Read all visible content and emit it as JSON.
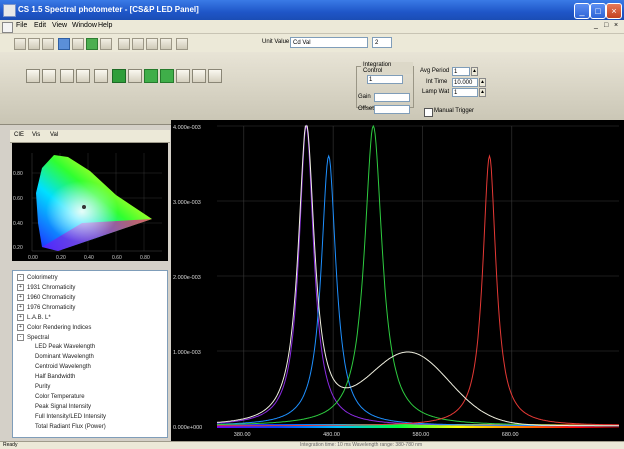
{
  "window": {
    "title": "CS 1.5 Spectral photometer - [CS&P LED Panel]",
    "buttons": [
      "_",
      "□",
      "×"
    ]
  },
  "menubar": {
    "items": [
      "File",
      "Edit",
      "View",
      "Window",
      "Help"
    ],
    "mdi_controls": [
      "_",
      "□",
      "×"
    ]
  },
  "toolbar": {
    "unit_label": "Unit Value",
    "unit_value": "Cd Val",
    "zoom_value": "2"
  },
  "measurement_panel": {
    "group_label": "Integration Control",
    "combo_value": "1",
    "field1_label": "Gain",
    "field2_label": "Offset",
    "avg_label": "Avg Period",
    "avg_value": "1",
    "int_time_label": "Int Time",
    "int_time_value": "10.000",
    "lamp_label": "Lamp Wat",
    "lamp_value": "1",
    "checkbox_label": "Manual Trigger"
  },
  "left_panel": {
    "tabs": [
      "CIE",
      "Vis",
      "Val"
    ],
    "tree": [
      {
        "label": "Colorimetry",
        "level": 0
      },
      {
        "label": "1931 Chromaticity",
        "level": 1
      },
      {
        "label": "1960 Chromaticity",
        "level": 1
      },
      {
        "label": "1976 Chromaticity",
        "level": 1
      },
      {
        "label": "L.A.B. L*",
        "level": 1
      },
      {
        "label": "Color Rendering Indices",
        "level": 1
      },
      {
        "label": "Spectral",
        "level": 1
      },
      {
        "label": "LED Peak Wavelength",
        "level": 2
      },
      {
        "label": "Dominant Wavelength",
        "level": 2
      },
      {
        "label": "Centroid Wavelength",
        "level": 2
      },
      {
        "label": "Half Bandwidth",
        "level": 2
      },
      {
        "label": "Purity",
        "level": 2
      },
      {
        "label": "Color Temperature",
        "level": 2
      },
      {
        "label": "Peak Signal Intensity",
        "level": 2
      },
      {
        "label": "Full Intensity/LED Intensity",
        "level": 2
      },
      {
        "label": "Total Radiant Flux (Power)",
        "level": 2
      }
    ]
  },
  "cie_chart": {
    "x_ticks": [
      "0.00",
      "0.20",
      "0.40",
      "0.60",
      "0.80"
    ],
    "y_ticks": [
      "0.80",
      "0.60",
      "0.40",
      "0.20",
      "0.00"
    ]
  },
  "chart_data": {
    "type": "line",
    "title": "",
    "xlabel": "",
    "ylabel": "",
    "xlim": [
      350,
      800
    ],
    "ylim": [
      0,
      0.004
    ],
    "y_ticks": [
      "4.000e-003",
      "3.000e-003",
      "2.000e-003",
      "1.000e-003",
      "0.000e+000"
    ],
    "x_ticks": [
      "380.00",
      "480.00",
      "580.00",
      "680.00"
    ],
    "grid": true,
    "series": [
      {
        "color": "#8a2be2",
        "peak_nm": 450,
        "peak": 0.004,
        "width": 10
      },
      {
        "color": "#1e90ff",
        "peak_nm": 475,
        "peak": 0.0036,
        "width": 10
      },
      {
        "color": "#2ecc40",
        "peak_nm": 525,
        "peak": 0.004,
        "width": 12
      },
      {
        "color": "#e53935",
        "peak_nm": 655,
        "peak": 0.0036,
        "width": 9
      },
      {
        "color": "#f0f0e0",
        "type": "white",
        "blue_peak_nm": 450,
        "blue_peak": 0.004,
        "phosphor_peak_nm": 565,
        "phosphor_peak": 0.00095
      }
    ]
  },
  "statusbar": {
    "left": "Ready",
    "right": "Integration time: 10 ms   Wavelength range: 380-780 nm"
  }
}
